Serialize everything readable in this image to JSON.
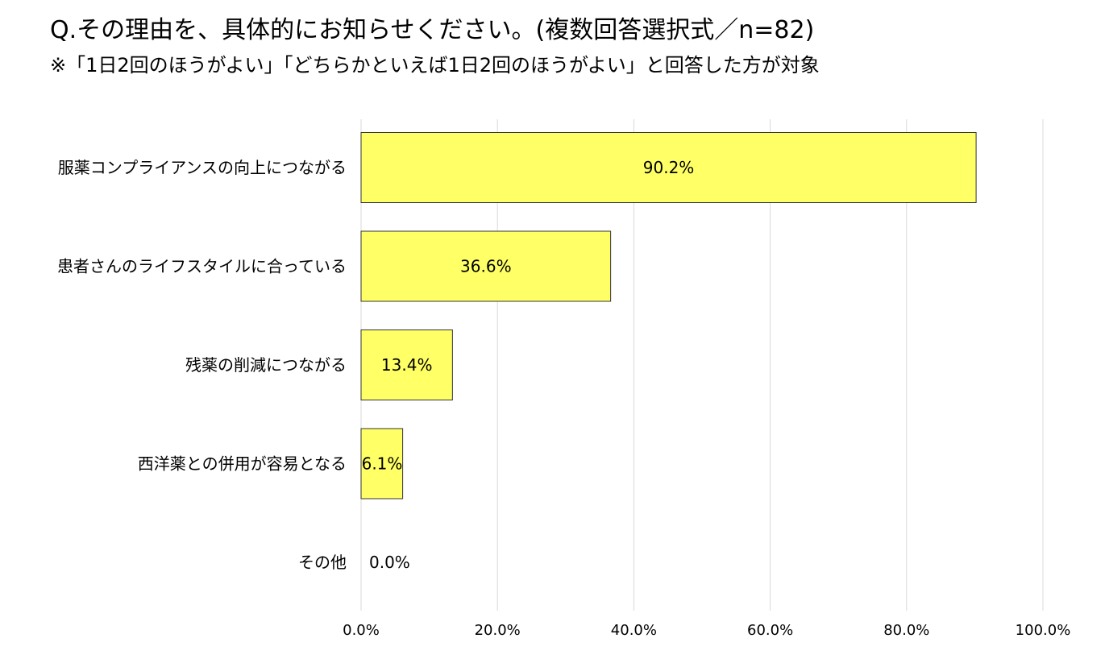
{
  "title": "Q.その理由を、具体的にお知らせください。(複数回答選択式／n=82)",
  "subtitle": "※「1日2回のほうがよい」「どちらかといえば1日2回のほうがよい」と回答した方が対象",
  "chart_data": {
    "type": "bar",
    "orientation": "horizontal",
    "categories": [
      "服薬コンプライアンスの向上につながる",
      "患者さんのライフスタイルに合っている",
      "残薬の削減につながる",
      "西洋薬との併用が容易となる",
      "その他"
    ],
    "values": [
      90.2,
      36.6,
      13.4,
      6.1,
      0.0
    ],
    "value_labels": [
      "90.2%",
      "36.6%",
      "13.4%",
      "6.1%",
      "0.0%"
    ],
    "xlim": [
      0,
      100
    ],
    "xticks": [
      0,
      20,
      40,
      60,
      80,
      100
    ],
    "xtick_labels": [
      "0.0%",
      "20.0%",
      "40.0%",
      "60.0%",
      "80.0%",
      "100.0%"
    ],
    "grid": "vertical",
    "bar_color": "#ffff66",
    "bar_border": "#333333",
    "grid_color": "#d9d9d9"
  }
}
